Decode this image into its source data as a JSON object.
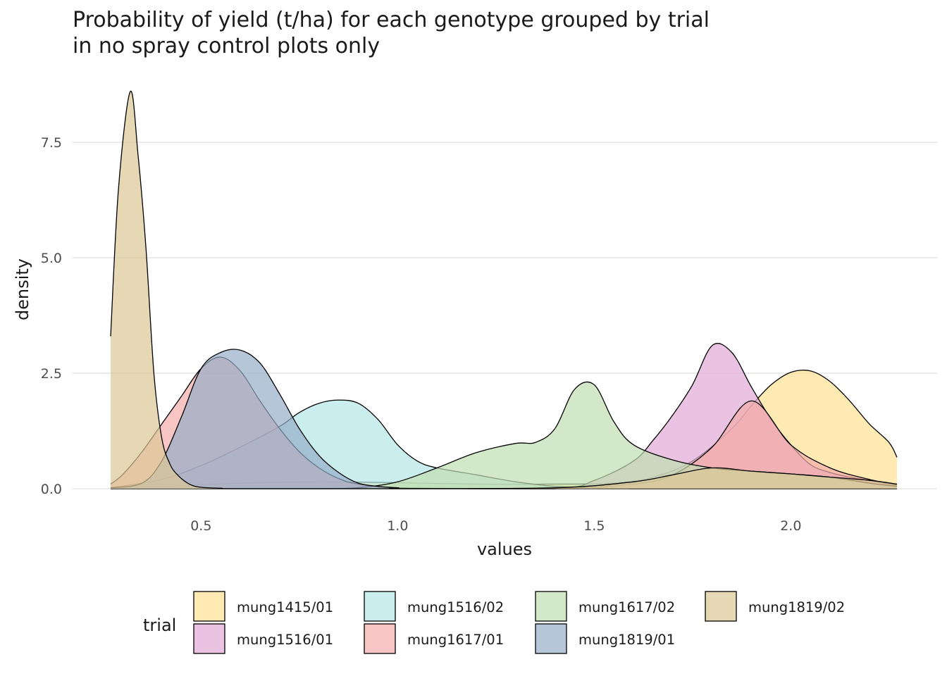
{
  "chart_data": {
    "type": "area",
    "title": "Probability of yield (t/ha) for each genotype grouped by trial",
    "subtitle": "in no spray control plots only",
    "xlabel": "values",
    "ylabel": "density",
    "xlim": [
      0.27,
      2.27
    ],
    "ylim": [
      0,
      8.6
    ],
    "x_ticks": [
      0.5,
      1.0,
      1.5,
      2.0
    ],
    "x_tick_labels": [
      "0.5",
      "1.0",
      "1.5",
      "2.0"
    ],
    "y_ticks": [
      0.0,
      2.5,
      5.0,
      7.5
    ],
    "y_tick_labels": [
      "0.0",
      "2.5",
      "5.0",
      "7.5"
    ],
    "grid": true,
    "legend_title": "trial",
    "legend_position": "bottom",
    "series": [
      {
        "name": "mung1415/01",
        "color": "#FEE191",
        "x": [
          0.27,
          0.4,
          0.6,
          0.8,
          1.0,
          1.2,
          1.4,
          1.55,
          1.65,
          1.75,
          1.85,
          1.9,
          1.95,
          2.0,
          2.05,
          2.1,
          2.15,
          2.2,
          2.25,
          2.27
        ],
        "y": [
          0.02,
          0.05,
          0.12,
          0.15,
          0.13,
          0.1,
          0.1,
          0.12,
          0.25,
          0.6,
          1.3,
          1.8,
          2.25,
          2.52,
          2.55,
          2.32,
          1.9,
          1.4,
          1.0,
          0.68
        ]
      },
      {
        "name": "mung1516/01",
        "color": "#E1AAD5",
        "x": [
          0.27,
          0.6,
          1.0,
          1.4,
          1.5,
          1.6,
          1.65,
          1.7,
          1.75,
          1.8,
          1.85,
          1.9,
          1.95,
          2.0,
          2.05,
          2.1,
          2.15,
          2.2,
          2.25,
          2.27
        ],
        "y": [
          0.0,
          0.0,
          0.0,
          0.0,
          0.18,
          0.6,
          1.05,
          1.6,
          2.25,
          3.1,
          2.95,
          2.2,
          1.5,
          0.95,
          0.52,
          0.35,
          0.25,
          0.18,
          0.1,
          0.08
        ]
      },
      {
        "name": "mung1516/02",
        "color": "#B4E5E5",
        "x": [
          0.27,
          0.4,
          0.5,
          0.6,
          0.7,
          0.75,
          0.8,
          0.85,
          0.9,
          0.95,
          1.0,
          1.05,
          1.1,
          1.2,
          1.3,
          1.4,
          1.5,
          1.6,
          1.7,
          2.27
        ],
        "y": [
          0.02,
          0.2,
          0.5,
          0.9,
          1.35,
          1.65,
          1.85,
          1.92,
          1.85,
          1.5,
          0.95,
          0.6,
          0.45,
          0.3,
          0.15,
          0.05,
          0.02,
          0.0,
          0.0,
          0.0
        ]
      },
      {
        "name": "mung1617/01",
        "color": "#F4ADA9",
        "x": [
          0.27,
          0.3,
          0.35,
          0.4,
          0.45,
          0.5,
          0.55,
          0.6,
          0.65,
          0.7,
          0.75,
          0.8,
          0.85,
          0.9,
          1.0,
          1.2,
          1.4,
          1.6,
          1.7,
          1.8,
          1.9,
          2.0,
          2.1,
          2.2,
          2.27
        ],
        "y": [
          0.1,
          0.3,
          0.8,
          1.4,
          2.0,
          2.6,
          2.85,
          2.55,
          1.9,
          1.3,
          0.8,
          0.45,
          0.22,
          0.1,
          0.02,
          0.0,
          0.0,
          0.1,
          0.3,
          0.9,
          1.9,
          0.95,
          0.45,
          0.2,
          0.08
        ]
      },
      {
        "name": "mung1617/02",
        "color": "#C1DEB1",
        "x": [
          0.27,
          0.6,
          0.8,
          0.9,
          1.0,
          1.1,
          1.2,
          1.3,
          1.35,
          1.4,
          1.45,
          1.5,
          1.55,
          1.6,
          1.7,
          1.8,
          1.9,
          2.0,
          2.1,
          2.2,
          2.27
        ],
        "y": [
          0.0,
          0.0,
          0.0,
          0.02,
          0.15,
          0.45,
          0.78,
          0.98,
          1.0,
          1.3,
          2.15,
          2.25,
          1.45,
          0.95,
          0.62,
          0.45,
          0.38,
          0.32,
          0.25,
          0.12,
          0.05
        ]
      },
      {
        "name": "mung1819/01",
        "color": "#95AEC9",
        "x": [
          0.27,
          0.35,
          0.4,
          0.45,
          0.5,
          0.55,
          0.6,
          0.65,
          0.7,
          0.75,
          0.8,
          0.85,
          0.9,
          0.95,
          1.0,
          1.1,
          2.27
        ],
        "y": [
          0.02,
          0.12,
          0.6,
          1.55,
          2.6,
          2.95,
          3.0,
          2.72,
          2.05,
          1.3,
          0.72,
          0.35,
          0.12,
          0.05,
          0.02,
          0.0,
          0.0
        ]
      },
      {
        "name": "mung1819/02",
        "color": "#DBC796",
        "x": [
          0.27,
          0.29,
          0.32,
          0.34,
          0.36,
          0.38,
          0.4,
          0.42,
          0.44,
          0.47,
          0.5,
          0.55,
          0.6,
          1.0,
          1.4,
          1.6,
          1.7,
          1.8,
          1.9,
          2.0,
          2.1,
          2.2,
          2.27
        ],
        "y": [
          3.3,
          6.5,
          8.6,
          7.2,
          5.2,
          2.5,
          1.1,
          0.55,
          0.3,
          0.1,
          0.03,
          0.01,
          0.0,
          0.0,
          0.02,
          0.15,
          0.3,
          0.45,
          0.38,
          0.32,
          0.25,
          0.18,
          0.1
        ]
      }
    ]
  }
}
